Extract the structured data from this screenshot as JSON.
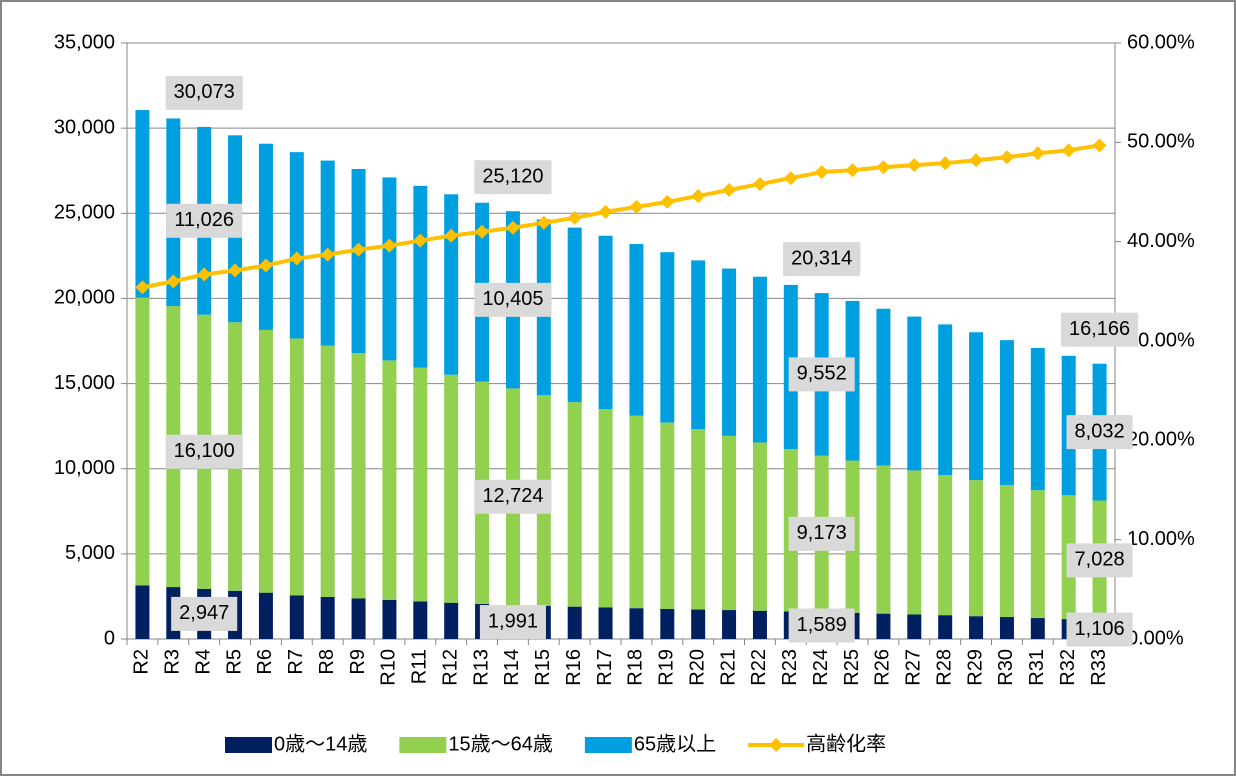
{
  "chart_data": {
    "type": "bar",
    "stacked": true,
    "categories": [
      "R2",
      "R3",
      "R4",
      "R5",
      "R6",
      "R7",
      "R8",
      "R9",
      "R10",
      "R11",
      "R12",
      "R13",
      "R14",
      "R15",
      "R16",
      "R17",
      "R18",
      "R19",
      "R20",
      "R21",
      "R22",
      "R23",
      "R24",
      "R25",
      "R26",
      "R27",
      "R28",
      "R29",
      "R30",
      "R31",
      "R32",
      "R33"
    ],
    "series": [
      {
        "name": "0歳～14歳",
        "color": "#002060",
        "type": "bar",
        "values": [
          3150,
          3050,
          2947,
          2830,
          2720,
          2560,
          2470,
          2380,
          2290,
          2210,
          2130,
          2060,
          1991,
          1950,
          1900,
          1850,
          1810,
          1770,
          1730,
          1700,
          1660,
          1620,
          1589,
          1540,
          1490,
          1440,
          1400,
          1340,
          1290,
          1230,
          1170,
          1106
        ],
        "value_labels": [
          null,
          null,
          "2,947",
          null,
          null,
          null,
          null,
          null,
          null,
          null,
          null,
          null,
          "1,991",
          null,
          null,
          null,
          null,
          null,
          null,
          null,
          null,
          null,
          "1,589",
          null,
          null,
          null,
          null,
          null,
          null,
          null,
          null,
          "1,106"
        ]
      },
      {
        "name": "15歳～64歳",
        "color": "#92d050",
        "type": "bar",
        "values": [
          16900,
          16500,
          16100,
          15770,
          15430,
          15090,
          14750,
          14410,
          14070,
          13730,
          13390,
          13060,
          12724,
          12370,
          12010,
          11650,
          11300,
          10940,
          10590,
          10230,
          9880,
          9530,
          9173,
          8940,
          8700,
          8460,
          8230,
          7990,
          7750,
          7510,
          7270,
          7028
        ],
        "value_labels": [
          null,
          null,
          "16,100",
          null,
          null,
          null,
          null,
          null,
          null,
          null,
          null,
          null,
          "12,724",
          null,
          null,
          null,
          null,
          null,
          null,
          null,
          null,
          null,
          "9,173",
          null,
          null,
          null,
          null,
          null,
          null,
          null,
          null,
          "7,028"
        ]
      },
      {
        "name": "65歳以上",
        "color": "#00a0e0",
        "type": "bar",
        "values": [
          11010,
          11020,
          11026,
          10980,
          10935,
          10940,
          10875,
          10810,
          10745,
          10670,
          10595,
          10500,
          10405,
          10320,
          10250,
          10180,
          10085,
          10005,
          9915,
          9825,
          9735,
          9645,
          9552,
          9375,
          9205,
          9035,
          8845,
          8685,
          8510,
          8350,
          8190,
          8032
        ],
        "value_labels": [
          null,
          null,
          "11,026",
          null,
          null,
          null,
          null,
          null,
          null,
          null,
          null,
          null,
          "10,405",
          null,
          null,
          null,
          null,
          null,
          null,
          null,
          null,
          null,
          "9,552",
          null,
          null,
          null,
          null,
          null,
          null,
          null,
          null,
          "8,032"
        ]
      },
      {
        "name": "高齢化率",
        "color": "#ffc000",
        "type": "line",
        "axis": "y2",
        "values": [
          35.4,
          36.0,
          36.7,
          37.1,
          37.6,
          38.3,
          38.7,
          39.2,
          39.6,
          40.1,
          40.6,
          41.0,
          41.4,
          41.9,
          42.4,
          43.0,
          43.5,
          44.0,
          44.6,
          45.2,
          45.8,
          46.4,
          47.0,
          47.2,
          47.5,
          47.7,
          47.9,
          48.2,
          48.5,
          48.9,
          49.2,
          49.7
        ]
      }
    ],
    "annotations": [
      {
        "text": "30,073",
        "x": "R4"
      },
      {
        "text": "25,120",
        "x": "R14"
      },
      {
        "text": "20,314",
        "x": "R24"
      },
      {
        "text": "16,166",
        "x": "R33"
      }
    ],
    "ylim": [
      0,
      35000
    ],
    "yticks": [
      0,
      {
        "value": 5000,
        "label": "5,000"
      },
      {
        "value": 10000,
        "label": "10,000"
      },
      {
        "value": 15000,
        "label": "15,000"
      },
      {
        "value": 20000,
        "label": "20,000"
      },
      {
        "value": 25000,
        "label": "25,000"
      },
      {
        "value": 30000,
        "label": "30,000"
      },
      {
        "value": 35000,
        "label": "35,000"
      }
    ],
    "y2lim": [
      0,
      60
    ],
    "y2ticks": [
      {
        "value": 0,
        "label": "0.00%"
      },
      {
        "value": 10,
        "label": "10.00%"
      },
      {
        "value": 20,
        "label": "20.00%"
      },
      {
        "value": 30,
        "label": "30.00%"
      },
      {
        "value": 40,
        "label": "40.00%"
      },
      {
        "value": 50,
        "label": "50.00%"
      },
      {
        "value": 60,
        "label": "60.00%"
      }
    ],
    "grid": true,
    "legend": "bottom"
  }
}
